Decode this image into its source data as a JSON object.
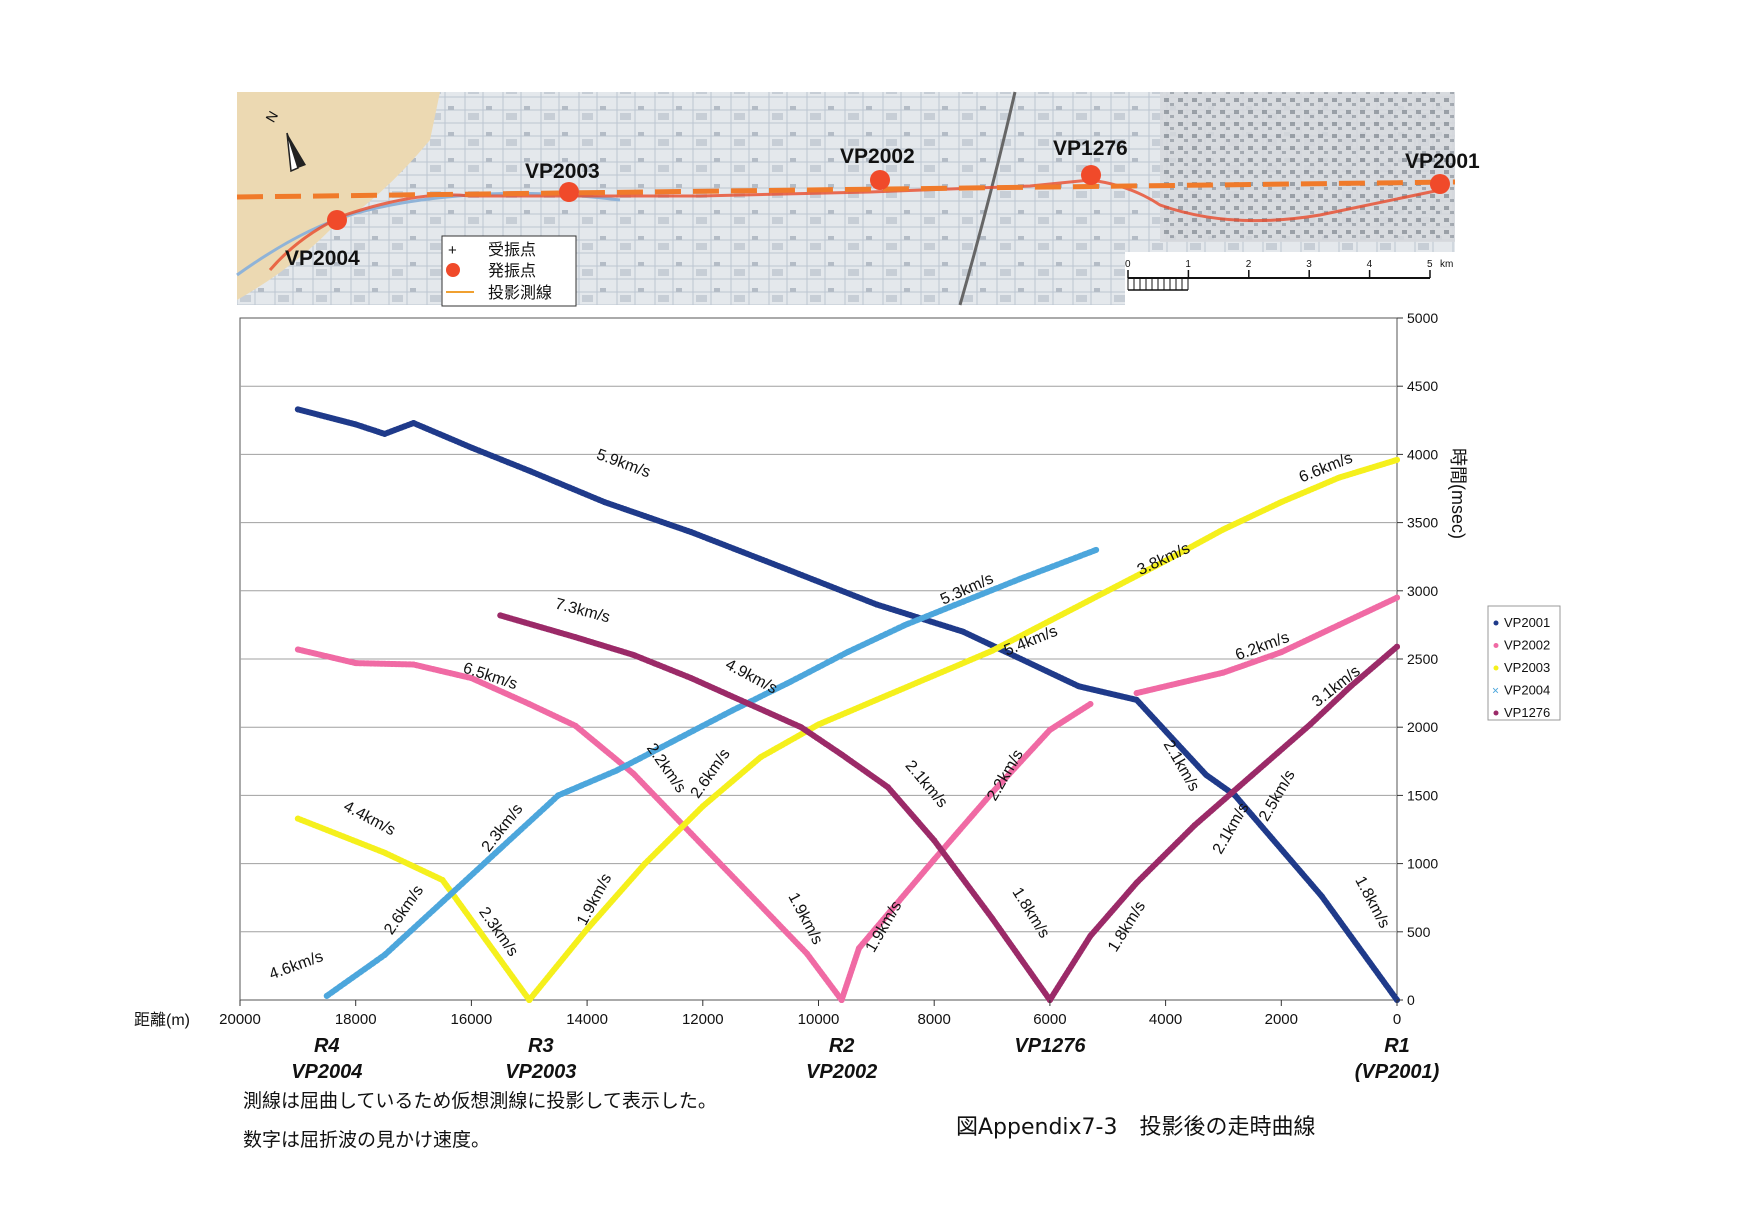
{
  "map": {
    "stations": [
      {
        "label": "VP2004"
      },
      {
        "label": "VP2003"
      },
      {
        "label": "VP2002"
      },
      {
        "label": "VP1276"
      },
      {
        "label": "VP2001"
      }
    ],
    "legend": {
      "receiver": "受振点",
      "source": "発振点",
      "projected_line": "投影測線"
    },
    "north_label": "N",
    "scale_ticks": [
      "0",
      "1",
      "2",
      "3",
      "4",
      "5"
    ],
    "scale_unit": "km",
    "colors": {
      "line": "#f07a2a",
      "source": "#f04a2a"
    }
  },
  "chart_data": {
    "type": "scatter",
    "xlabel": "距離(m)",
    "ylabel": "時間(msec)",
    "xlim": [
      20000,
      0
    ],
    "ylim": [
      0,
      5000
    ],
    "xticks": [
      "20000",
      "18000",
      "16000",
      "14000",
      "12000",
      "10000",
      "8000",
      "6000",
      "4000",
      "2000",
      "0"
    ],
    "yticks": [
      "0",
      "500",
      "1000",
      "1500",
      "2000",
      "2500",
      "3000",
      "3500",
      "4000",
      "4500",
      "5000"
    ],
    "grid": "horizontal",
    "legend_position": "right",
    "series": [
      {
        "name": "VP2001",
        "color": "#1f3a8a",
        "marker": "dot",
        "x": [
          0,
          1300,
          2800,
          3300,
          4500,
          5500,
          7500,
          9000,
          10500,
          12200,
          13700,
          15000,
          16000,
          17000,
          17500,
          18000,
          19000
        ],
        "y": [
          0,
          760,
          1500,
          1650,
          2200,
          2300,
          2700,
          2900,
          3150,
          3430,
          3650,
          3880,
          4050,
          4230,
          4150,
          4220,
          4330
        ]
      },
      {
        "name": "VP2002",
        "color": "#f06aa4",
        "marker": "dot",
        "x": [
          9600,
          9300,
          8000,
          7000,
          6000,
          5300,
          null,
          4500,
          3000,
          2000,
          1000,
          0
        ],
        "y": [
          0,
          380,
          1030,
          1520,
          1980,
          2170,
          null,
          2250,
          2400,
          2550,
          2750,
          2950
        ]
      },
      {
        "name": "VP2002",
        "color": "#f06aa4",
        "marker": "dot",
        "x": [
          9600,
          10200,
          11200,
          12200,
          13200,
          14200,
          15000,
          16000,
          17000,
          18000,
          19000
        ],
        "y": [
          0,
          340,
          780,
          1220,
          1660,
          2010,
          2170,
          2360,
          2460,
          2470,
          2570
        ]
      },
      {
        "name": "VP2003",
        "color": "#f5f01c",
        "marker": "dot",
        "x": [
          15000,
          14000,
          13000,
          12000,
          11000,
          10000,
          9000,
          8000,
          7000,
          6000,
          5000,
          4000,
          3000,
          2000,
          1000,
          0
        ],
        "y": [
          0,
          520,
          1000,
          1420,
          1780,
          2020,
          2200,
          2380,
          2560,
          2780,
          3000,
          3220,
          3450,
          3650,
          3830,
          3960
        ]
      },
      {
        "name": "VP2003",
        "color": "#f5f01c",
        "marker": "dot",
        "x": [
          15000,
          16500,
          17500,
          19000
        ],
        "y": [
          0,
          880,
          1080,
          1330
        ]
      },
      {
        "name": "VP2004",
        "color": "#4ca6dc",
        "marker": "x",
        "x": [
          18500,
          17500,
          16500,
          15500,
          14500,
          13500,
          12500,
          11500,
          10500,
          9500,
          8500,
          7500,
          6500,
          5200
        ],
        "y": [
          30,
          330,
          720,
          1110,
          1500,
          1680,
          1900,
          2120,
          2330,
          2550,
          2750,
          2920,
          3090,
          3300
        ]
      },
      {
        "name": "VP1276",
        "color": "#9b2a68",
        "marker": "dot",
        "x": [
          6000,
          7000,
          8000,
          8800,
          9600,
          10300,
          11200,
          12200,
          13200,
          14200,
          15500
        ],
        "y": [
          0,
          600,
          1170,
          1560,
          1800,
          2000,
          2170,
          2360,
          2530,
          2660,
          2820
        ]
      },
      {
        "name": "VP1276",
        "color": "#9b2a68",
        "marker": "dot",
        "x": [
          6000,
          5300,
          4500,
          3500,
          2500,
          1500,
          800,
          0
        ],
        "y": [
          0,
          470,
          860,
          1280,
          1650,
          2020,
          2300,
          2590
        ]
      }
    ],
    "legend_entries": [
      "VP2001",
      "VP2002",
      "VP2003",
      "VP2004",
      "VP1276"
    ],
    "annotations": [
      {
        "text": "5.9km/s",
        "x": 13400,
        "y": 3900,
        "rotate": 20
      },
      {
        "text": "6.6km/s",
        "x": 1200,
        "y": 3870,
        "rotate": -22
      },
      {
        "text": "3.8km/s",
        "x": 4000,
        "y": 3200,
        "rotate": -25
      },
      {
        "text": "5.3km/s",
        "x": 7400,
        "y": 2980,
        "rotate": -24
      },
      {
        "text": "5.4km/s",
        "x": 6300,
        "y": 2600,
        "rotate": -22
      },
      {
        "text": "7.3km/s",
        "x": 14100,
        "y": 2820,
        "rotate": 15
      },
      {
        "text": "6.5km/s",
        "x": 15700,
        "y": 2340,
        "rotate": 18
      },
      {
        "text": "6.2km/s",
        "x": 2300,
        "y": 2560,
        "rotate": -20
      },
      {
        "text": "4.9km/s",
        "x": 11200,
        "y": 2340,
        "rotate": 28
      },
      {
        "text": "3.1km/s",
        "x": 1000,
        "y": 2270,
        "rotate": -38
      },
      {
        "text": "2.2km/s",
        "x": 12700,
        "y": 1680,
        "rotate": 55
      },
      {
        "text": "2.6km/s",
        "x": 11800,
        "y": 1640,
        "rotate": -55
      },
      {
        "text": "2.1km/s",
        "x": 8200,
        "y": 1560,
        "rotate": 50
      },
      {
        "text": "2.2km/s",
        "x": 6700,
        "y": 1630,
        "rotate": -60
      },
      {
        "text": "2.1km/s",
        "x": 3800,
        "y": 1700,
        "rotate": 60
      },
      {
        "text": "2.5km/s",
        "x": 2000,
        "y": 1480,
        "rotate": -60
      },
      {
        "text": "4.4km/s",
        "x": 17800,
        "y": 1300,
        "rotate": 28
      },
      {
        "text": "2.3km/s",
        "x": 15400,
        "y": 1240,
        "rotate": -52
      },
      {
        "text": "2.1km/s",
        "x": 2800,
        "y": 1240,
        "rotate": -60
      },
      {
        "text": "2.6km/s",
        "x": 17100,
        "y": 640,
        "rotate": -55
      },
      {
        "text": "2.3km/s",
        "x": 15600,
        "y": 480,
        "rotate": 55
      },
      {
        "text": "1.9km/s",
        "x": 13800,
        "y": 720,
        "rotate": -62
      },
      {
        "text": "1.9km/s",
        "x": 10300,
        "y": 580,
        "rotate": 62
      },
      {
        "text": "1.9km/s",
        "x": 8800,
        "y": 520,
        "rotate": -60
      },
      {
        "text": "1.8km/s",
        "x": 6400,
        "y": 620,
        "rotate": 58
      },
      {
        "text": "1.8km/s",
        "x": 4600,
        "y": 520,
        "rotate": -58
      },
      {
        "text": "1.8km/s",
        "x": 500,
        "y": 700,
        "rotate": 62
      },
      {
        "text": "4.6km/s",
        "x": 19000,
        "y": 220,
        "rotate": -20
      }
    ],
    "bottom_labels": [
      {
        "x": 18500,
        "lines": [
          "R4",
          "VP2004"
        ]
      },
      {
        "x": 14800,
        "lines": [
          "R3",
          "VP2003"
        ]
      },
      {
        "x": 9600,
        "lines": [
          "R2",
          "VP2002"
        ]
      },
      {
        "x": 6000,
        "lines": [
          "VP1276"
        ]
      },
      {
        "x": 0,
        "lines": [
          "R1",
          "(VP2001)"
        ]
      }
    ]
  },
  "notes": {
    "line1": "測線は屈曲しているため仮想測線に投影して表示した。",
    "line2": "数字は屈折波の見かけ速度。"
  },
  "caption": "図Appendix7-3　投影後の走時曲線"
}
